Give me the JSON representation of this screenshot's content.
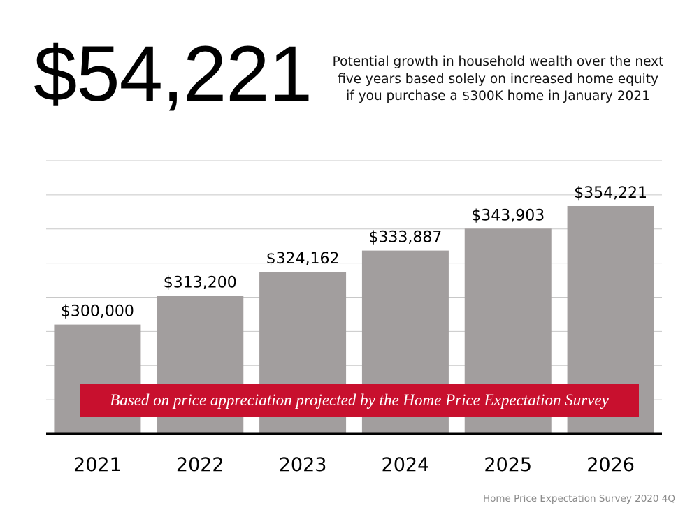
{
  "headline": {
    "amount": "$54,221"
  },
  "subtitle": {
    "lines": [
      "Potential growth in household wealth over the next",
      "five years based solely on increased home equity",
      "if you purchase a $300K home in January 2021"
    ]
  },
  "banner": {
    "text": "Based on price appreciation projected by the Home Price Expectation Survey",
    "color": "#c8102e"
  },
  "source": {
    "text": "Home Price Expectation Survey 2020 4Q"
  },
  "chart_data": {
    "type": "bar",
    "categories": [
      "2021",
      "2022",
      "2023",
      "2024",
      "2025",
      "2026"
    ],
    "values": [
      300000,
      313200,
      324162,
      333887,
      343903,
      354221
    ],
    "data_labels": [
      "$300,000",
      "$313,200",
      "$324,162",
      "$333,887",
      "$343,903",
      "$354,221"
    ],
    "title": "",
    "xlabel": "",
    "ylabel": "",
    "ylim": [
      250000,
      375000
    ],
    "grid": true,
    "bar_color": "#a29e9e",
    "gridline_color": "#c8c8c8"
  }
}
